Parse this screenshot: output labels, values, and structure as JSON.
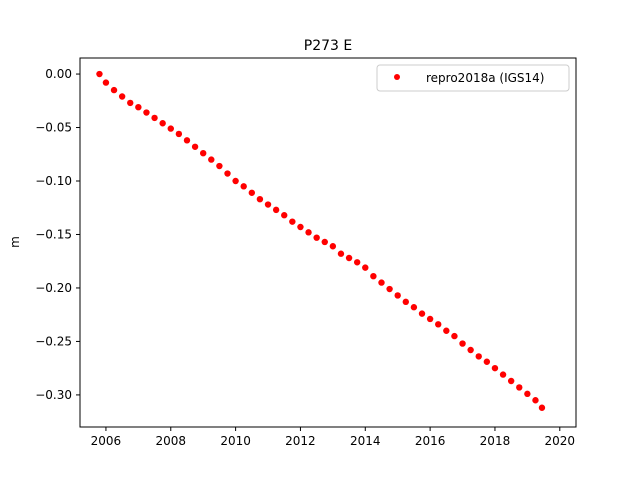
{
  "chart_data": {
    "type": "scatter",
    "title": "P273 E",
    "xlabel": "",
    "ylabel": "m",
    "xlim": [
      2005.2,
      2020.5
    ],
    "ylim": [
      -0.33,
      0.015
    ],
    "xticks": [
      2006,
      2008,
      2010,
      2012,
      2014,
      2016,
      2018,
      2020
    ],
    "xtick_labels": [
      "2006",
      "2008",
      "2010",
      "2012",
      "2014",
      "2016",
      "2018",
      "2020"
    ],
    "yticks": [
      0.0,
      -0.05,
      -0.1,
      -0.15,
      -0.2,
      -0.25,
      -0.3
    ],
    "ytick_labels": [
      "0.00",
      "−0.05",
      "−0.10",
      "−0.15",
      "−0.20",
      "−0.25",
      "−0.30"
    ],
    "grid": false,
    "legend_position": "top-right",
    "series": [
      {
        "name": "repro2018a (IGS14)",
        "color": "#ff0000",
        "marker": "dot",
        "x": [
          2005.8,
          2006.0,
          2006.25,
          2006.5,
          2006.75,
          2007.0,
          2007.25,
          2007.5,
          2007.75,
          2008.0,
          2008.25,
          2008.5,
          2008.75,
          2009.0,
          2009.25,
          2009.5,
          2009.75,
          2010.0,
          2010.25,
          2010.5,
          2010.75,
          2011.0,
          2011.25,
          2011.5,
          2011.75,
          2012.0,
          2012.25,
          2012.5,
          2012.75,
          2013.0,
          2013.25,
          2013.5,
          2013.75,
          2014.0,
          2014.25,
          2014.5,
          2014.75,
          2015.0,
          2015.25,
          2015.5,
          2015.75,
          2016.0,
          2016.25,
          2016.5,
          2016.75,
          2017.0,
          2017.25,
          2017.5,
          2017.75,
          2018.0,
          2018.25,
          2018.5,
          2018.75,
          2019.0,
          2019.25,
          2019.45
        ],
        "y": [
          0.0,
          -0.008,
          -0.015,
          -0.021,
          -0.027,
          -0.031,
          -0.036,
          -0.041,
          -0.046,
          -0.051,
          -0.056,
          -0.062,
          -0.068,
          -0.074,
          -0.08,
          -0.086,
          -0.093,
          -0.1,
          -0.105,
          -0.111,
          -0.117,
          -0.122,
          -0.127,
          -0.132,
          -0.138,
          -0.143,
          -0.148,
          -0.153,
          -0.157,
          -0.161,
          -0.168,
          -0.172,
          -0.176,
          -0.181,
          -0.189,
          -0.195,
          -0.201,
          -0.207,
          -0.213,
          -0.218,
          -0.224,
          -0.229,
          -0.234,
          -0.24,
          -0.245,
          -0.252,
          -0.258,
          -0.264,
          -0.269,
          -0.275,
          -0.281,
          -0.287,
          -0.293,
          -0.299,
          -0.305,
          -0.312
        ]
      }
    ]
  }
}
